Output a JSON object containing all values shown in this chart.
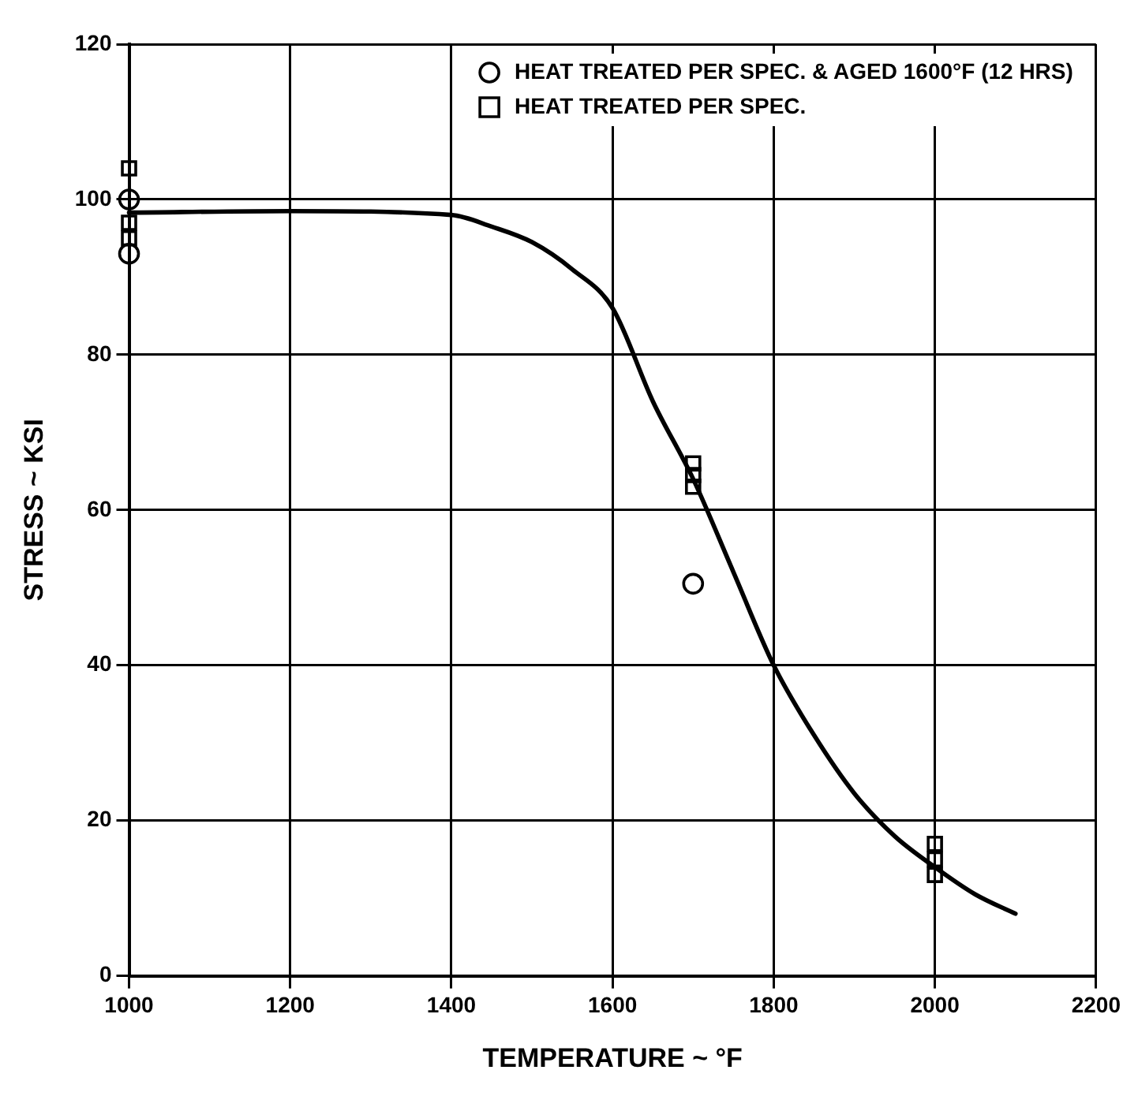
{
  "chart_data": {
    "type": "scatter",
    "xlabel": "TEMPERATURE ~ °F",
    "ylabel": "STRESS ~ KSI",
    "xlim": [
      1000,
      2200
    ],
    "xticks": [
      1000,
      1200,
      1400,
      1600,
      1800,
      2000,
      2200
    ],
    "ylim": [
      0,
      120
    ],
    "yticks": [
      0,
      20,
      40,
      60,
      80,
      100,
      120
    ],
    "grid": true,
    "legend": "top right",
    "series": [
      {
        "type": "line",
        "color": "#000000",
        "marker": "none",
        "line_style": "solid",
        "x": [
          1000,
          1200,
          1400,
          1450,
          1500,
          1550,
          1600,
          1650,
          1700,
          1750,
          1800,
          1850,
          1900,
          1950,
          2000,
          2050,
          2100
        ],
        "values": [
          98.3,
          98.5,
          98,
          96.5,
          94.5,
          91,
          86,
          74,
          64,
          52,
          40,
          31,
          23.5,
          18,
          14,
          10.5,
          8
        ]
      },
      {
        "name": "HEAT TREATED PER SPEC. & AGED 1600°F (12 HRS)",
        "color": "#000000",
        "marker": "circle",
        "x": [
          1000,
          1000,
          1700
        ],
        "values": [
          100,
          93,
          50.5
        ]
      },
      {
        "name": "HEAT TREATED PER SPEC.",
        "color": "#000000",
        "marker": "square",
        "x": [
          1000,
          1000,
          1000,
          1700,
          1700,
          1700,
          2000,
          2000,
          2000
        ],
        "values": [
          104,
          97,
          95,
          66,
          64.5,
          63,
          17,
          15,
          13
        ]
      }
    ]
  }
}
